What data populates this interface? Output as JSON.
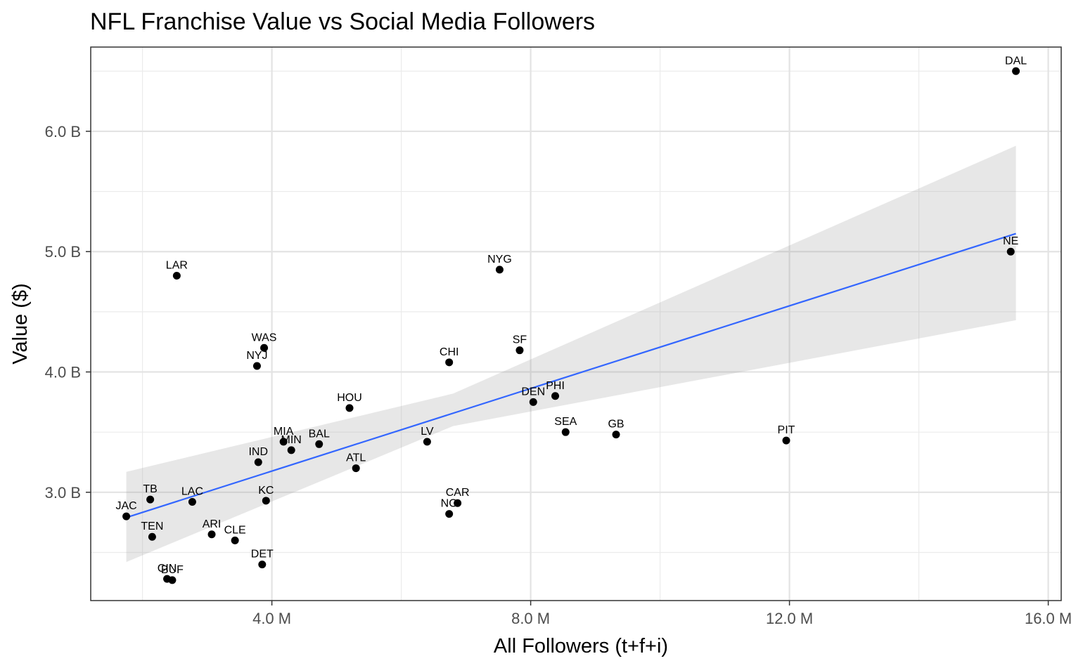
{
  "chart_data": {
    "type": "scatter",
    "title": "NFL Franchise Value vs Social Media Followers",
    "xlabel": "All Followers (t+f+i)",
    "ylabel": "Value ($)",
    "xlim": [
      1.2,
      16.2
    ],
    "ylim": [
      2.1,
      6.7
    ],
    "x_unit": "M followers",
    "y_unit": "B dollars",
    "x_ticks": [
      {
        "value": 4,
        "label": "4.0 M"
      },
      {
        "value": 8,
        "label": "8.0 M"
      },
      {
        "value": 12,
        "label": "12.0 M"
      },
      {
        "value": 16,
        "label": "16.0 M"
      }
    ],
    "y_ticks": [
      {
        "value": 3,
        "label": "3.0 B"
      },
      {
        "value": 4,
        "label": "4.0 B"
      },
      {
        "value": 5,
        "label": "5.0 B"
      },
      {
        "value": 6,
        "label": "6.0 B"
      }
    ],
    "grid": true,
    "points": [
      {
        "label": "DAL",
        "x": 15.5,
        "y": 6.5
      },
      {
        "label": "NE",
        "x": 15.42,
        "y": 5.0
      },
      {
        "label": "NYG",
        "x": 7.52,
        "y": 4.85
      },
      {
        "label": "LAR",
        "x": 2.53,
        "y": 4.8
      },
      {
        "label": "WAS",
        "x": 3.88,
        "y": 4.2
      },
      {
        "label": "SF",
        "x": 7.83,
        "y": 4.18
      },
      {
        "label": "CHI",
        "x": 6.74,
        "y": 4.08
      },
      {
        "label": "NYJ",
        "x": 3.77,
        "y": 4.05
      },
      {
        "label": "PHI",
        "x": 8.38,
        "y": 3.8
      },
      {
        "label": "DEN",
        "x": 8.04,
        "y": 3.75
      },
      {
        "label": "HOU",
        "x": 5.2,
        "y": 3.7
      },
      {
        "label": "SEA",
        "x": 8.54,
        "y": 3.5
      },
      {
        "label": "GB",
        "x": 9.32,
        "y": 3.48
      },
      {
        "label": "PIT",
        "x": 11.95,
        "y": 3.43
      },
      {
        "label": "MIA",
        "x": 4.18,
        "y": 3.42
      },
      {
        "label": "LV",
        "x": 6.4,
        "y": 3.42
      },
      {
        "label": "BAL",
        "x": 4.73,
        "y": 3.4
      },
      {
        "label": "MIN",
        "x": 4.3,
        "y": 3.35
      },
      {
        "label": "IND",
        "x": 3.79,
        "y": 3.25
      },
      {
        "label": "ATL",
        "x": 5.3,
        "y": 3.2
      },
      {
        "label": "TB",
        "x": 2.12,
        "y": 2.94
      },
      {
        "label": "KC",
        "x": 3.91,
        "y": 2.93
      },
      {
        "label": "LAC",
        "x": 2.77,
        "y": 2.92
      },
      {
        "label": "CAR",
        "x": 6.87,
        "y": 2.91
      },
      {
        "label": "NO",
        "x": 6.74,
        "y": 2.82
      },
      {
        "label": "JAC",
        "x": 1.75,
        "y": 2.8
      },
      {
        "label": "ARI",
        "x": 3.07,
        "y": 2.65
      },
      {
        "label": "TEN",
        "x": 2.15,
        "y": 2.63
      },
      {
        "label": "CLE",
        "x": 3.43,
        "y": 2.6
      },
      {
        "label": "DET",
        "x": 3.85,
        "y": 2.4
      },
      {
        "label": "CIN",
        "x": 2.38,
        "y": 2.28
      },
      {
        "label": "BUF",
        "x": 2.46,
        "y": 2.27
      }
    ],
    "trend": {
      "type": "linear",
      "color": "#3366ff",
      "band_color": "#999999",
      "line": [
        {
          "x": 1.75,
          "y": 2.79
        },
        {
          "x": 15.5,
          "y": 5.15
        }
      ],
      "band": [
        {
          "x": 1.75,
          "lo": 2.42,
          "hi": 3.17
        },
        {
          "x": 6.8,
          "lo": 3.55,
          "hi": 3.82
        },
        {
          "x": 15.5,
          "lo": 4.43,
          "hi": 5.88
        }
      ]
    },
    "point_color": "#000000"
  }
}
